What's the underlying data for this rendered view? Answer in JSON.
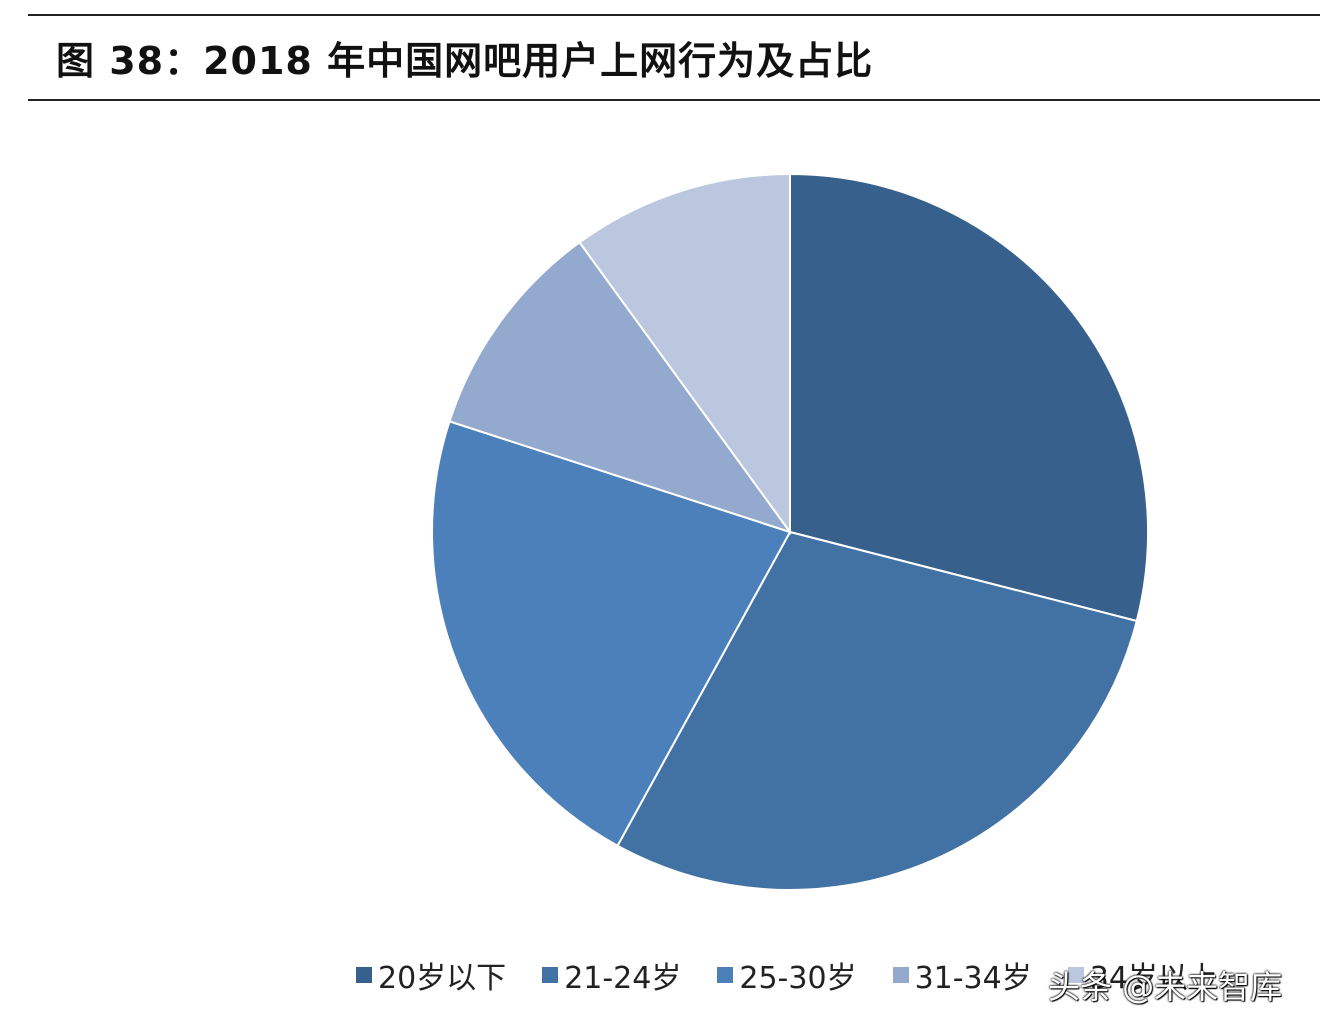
{
  "title": "图 38：2018 年中国网吧用户上网行为及占比",
  "chart_data": {
    "type": "pie",
    "title": "",
    "categories": [
      "20岁以下",
      "21-24岁",
      "25-30岁",
      "31-34岁",
      "34岁以上"
    ],
    "values": [
      29,
      29,
      22,
      10,
      10
    ],
    "colors": [
      "#38608C",
      "#4272A4",
      "#4C80BA",
      "#93A9CD",
      "#BAC7DF"
    ],
    "legend_position": "bottom"
  },
  "watermark": "头条 @未来智库"
}
